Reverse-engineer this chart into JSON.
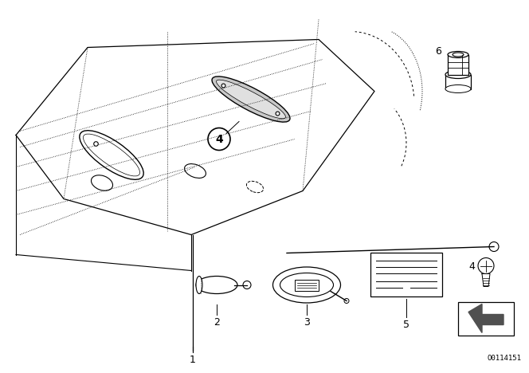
{
  "bg_color": "#ffffff",
  "line_color": "#000000",
  "part_number": "O0114151",
  "gray_fill": "#c8c8c8",
  "dark_gray": "#505050"
}
